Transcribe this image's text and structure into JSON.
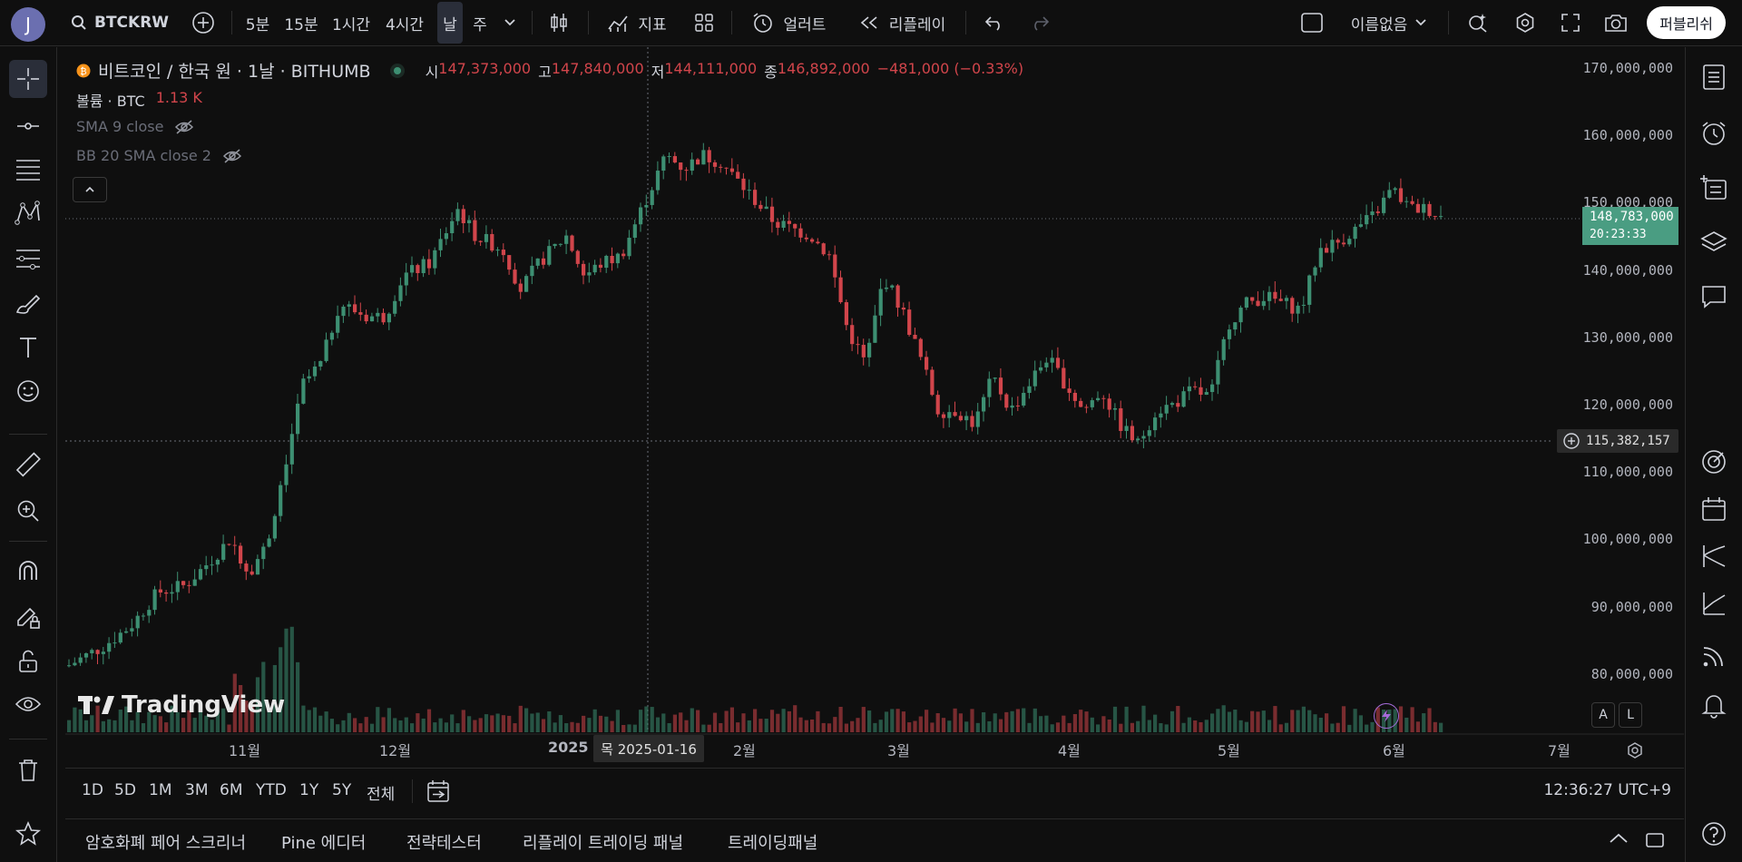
{
  "header": {
    "avatar_letter": "J",
    "symbol": "BTCKRW",
    "intervals": [
      "5분",
      "15분",
      "1시간",
      "4시간",
      "날",
      "주"
    ],
    "selected_interval": "날",
    "indicators_label": "지표",
    "alert_label": "얼러트",
    "replay_label": "리플레이",
    "layout_name": "이름없음",
    "publish_label": "퍼블리쉬"
  },
  "legend": {
    "title": "비트코인 / 한국 원 · 1날 · BITHUMB",
    "open_label": "시",
    "open": "147,373,000",
    "high_label": "고",
    "high": "147,840,000",
    "low_label": "저",
    "low": "144,111,000",
    "close_label": "종",
    "close": "146,892,000",
    "change": "−481,000 (−0.33%)",
    "volume_label": "볼륨 · BTC",
    "volume_value": "1.13 K",
    "sma_label": "SMA 9 close",
    "bb_label": "BB 20 SMA close 2"
  },
  "price_axis": {
    "ticks": [
      "170,000,000",
      "160,000,000",
      "150,000,000",
      "140,000,000",
      "130,000,000",
      "120,000,000",
      "110,000,000",
      "100,000,000",
      "90,000,000",
      "80,000,000"
    ],
    "last_price": "148,783,000",
    "countdown": "20:23:33",
    "crosshair_price": "115,382,157"
  },
  "time_axis": {
    "ticks": [
      "11월",
      "12월",
      "2025",
      "2월",
      "3월",
      "4월",
      "5월",
      "6월",
      "7월"
    ],
    "crosshair_date": "목 2025-01-16"
  },
  "watermark": "TradingView",
  "ranges": [
    "1D",
    "5D",
    "1M",
    "3M",
    "6M",
    "YTD",
    "1Y",
    "5Y",
    "전체"
  ],
  "clock": "12:36:27 UTC+9",
  "bottom_tabs": [
    "암호화폐 페어 스크리너",
    "Pine 에디터",
    "전략테스터",
    "리플레이 트레이딩 패널",
    "트레이딩패널"
  ],
  "axis_buttons": {
    "auto": "A",
    "log": "L"
  },
  "colors": {
    "up": "#3d8f72",
    "down": "#d1454b",
    "bg": "#0f0f0f",
    "accent": "#4a9d82"
  }
}
